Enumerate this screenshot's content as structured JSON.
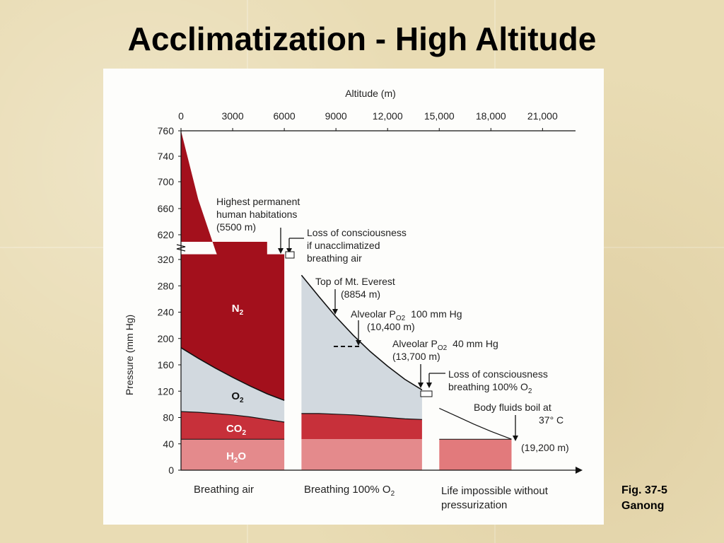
{
  "slide": {
    "title": "Acclimatization - High Altitude",
    "caption_line1": "Fig. 37-5",
    "caption_line2": "Ganong"
  },
  "colors": {
    "n2": "#a3101c",
    "o2": "#d2d9df",
    "co2": "#c7303a",
    "h2o": "#e48a8c",
    "pressurized": "#e27a7c",
    "background": "#e9dcb4"
  },
  "chart_data": {
    "type": "area",
    "xlabel": "Altitude (m)",
    "ylabel": "Pressure (mm Hg)",
    "x_ticks": [
      "0",
      "3000",
      "6000",
      "9000",
      "12,000",
      "15,000",
      "18,000",
      "21,000"
    ],
    "y_ticks": [
      "760",
      "740",
      "700",
      "660",
      "620",
      "320",
      "280",
      "240",
      "200",
      "160",
      "120",
      "80",
      "40",
      "0"
    ],
    "y_axis_break": true,
    "barometric_pressure_upper": {
      "altitude": [
        0,
        1000,
        2000,
        3000,
        4000,
        5000
      ],
      "pressure": [
        760,
        674,
        596,
        526,
        462,
        405
      ]
    },
    "breathing_air": {
      "altitude": [
        0,
        1000,
        2000,
        3000,
        4000,
        5000,
        6000
      ],
      "total_pressure": [
        328,
        328,
        328,
        328,
        328,
        328,
        328
      ],
      "o2_n2_boundary": [
        186,
        170,
        155,
        141,
        128,
        116,
        106
      ],
      "co2_top": [
        89,
        88,
        86,
        84,
        81,
        77,
        73
      ],
      "h2o_top": [
        47,
        47,
        47,
        47,
        47,
        47,
        47
      ]
    },
    "breathing_100_o2": {
      "altitude": [
        7000,
        8000,
        9000,
        10000,
        11000,
        12000,
        13000,
        14000
      ],
      "o2_top": [
        296,
        264,
        233,
        205,
        180,
        158,
        138,
        122
      ],
      "co2_top": [
        86,
        86,
        85,
        84,
        82,
        80,
        78,
        77
      ],
      "h2o_top": [
        47,
        47,
        47,
        47,
        47,
        47,
        47,
        47
      ]
    },
    "life_impossible_without_pressurization": {
      "altitude": [
        15000,
        16000,
        17000,
        18000,
        19200
      ],
      "barometric_pressure": [
        94,
        82,
        70,
        59,
        47
      ],
      "h2o_top": [
        47,
        47,
        47,
        47,
        47
      ]
    },
    "layer_labels": [
      {
        "base": "N",
        "sub": "2"
      },
      {
        "base": "O",
        "sub": "2"
      },
      {
        "base": "CO",
        "sub": "2"
      },
      {
        "base": "H",
        "sub": "2",
        "tail": "O"
      }
    ],
    "annotations": {
      "habitations_line1": "Highest permanent",
      "habitations_line2": "human habitations",
      "habitations_line3": "(5500 m)",
      "loc_air_line1": "Loss of consciousness",
      "loc_air_line2": "if unacclimatized",
      "loc_air_line3": "breathing air",
      "everest_line1": "Top of Mt. Everest",
      "everest_line2": "(8854 m)",
      "alv100_prefix": "Alveolar P",
      "alv100_sub": "O2",
      "alv100_value": "100 mm Hg",
      "alv100_alt": "(10,400 m)",
      "alv40_prefix": "Alveolar P",
      "alv40_sub": "O2",
      "alv40_value": "40 mm Hg",
      "alv40_alt": "(13,700 m)",
      "loc_o2_line1": "Loss of consciousness",
      "loc_o2_line2_prefix": "breathing 100% O",
      "loc_o2_line2_sub": "2",
      "boil_line1": "Body fluids boil at",
      "boil_line2": "37° C",
      "boil_alt": "(19,200 m)"
    },
    "region_labels": {
      "air": "Breathing air",
      "o2_prefix": "Breathing 100% O",
      "o2_sub": "2",
      "impossible_line1": "Life impossible without",
      "impossible_line2": "pressurization"
    }
  }
}
